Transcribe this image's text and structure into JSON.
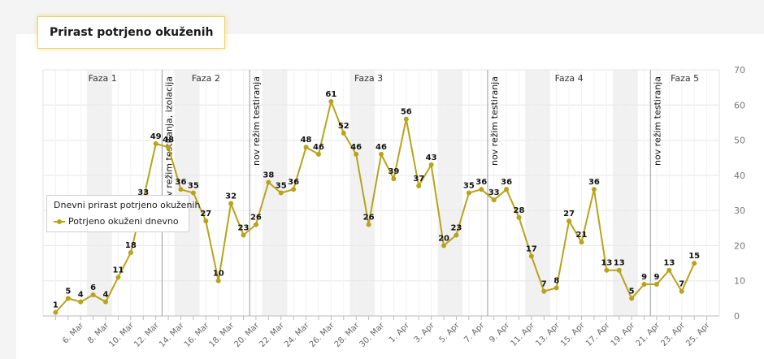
{
  "header": {
    "title": "Prirast potrjeno okuženih"
  },
  "legend": {
    "title": "Dnevni prirast potrjeno okuženih",
    "series_label": "Potrjeno okuženi dnevno"
  },
  "colors": {
    "line": "#b8a31a",
    "phase_band": "#f1f1f1",
    "grid": "#e6e6e6",
    "divider": "#9a9a9a"
  },
  "chart_data": {
    "type": "line",
    "title": "Prirast potrjeno okuženih",
    "xlabel": "",
    "ylabel": "",
    "ylim": [
      0,
      70
    ],
    "yticks": [
      0,
      10,
      20,
      30,
      40,
      50,
      60,
      70
    ],
    "x_start_day": 4,
    "x_tick_labels": [
      {
        "day": 6,
        "label": "6. Mar"
      },
      {
        "day": 8,
        "label": "8. Mar"
      },
      {
        "day": 10,
        "label": "10. Mar"
      },
      {
        "day": 12,
        "label": "12. Mar"
      },
      {
        "day": 14,
        "label": "14. Mar"
      },
      {
        "day": 16,
        "label": "16. Mar"
      },
      {
        "day": 18,
        "label": "18. Mar"
      },
      {
        "day": 20,
        "label": "20. Mar"
      },
      {
        "day": 22,
        "label": "22. Mar"
      },
      {
        "day": 24,
        "label": "24. Mar"
      },
      {
        "day": 26,
        "label": "26. Mar"
      },
      {
        "day": 28,
        "label": "28. Mar"
      },
      {
        "day": 30,
        "label": "30. Mar"
      },
      {
        "day": 32,
        "label": "1. Apr"
      },
      {
        "day": 34,
        "label": "3. Apr"
      },
      {
        "day": 36,
        "label": "5. Apr"
      },
      {
        "day": 38,
        "label": "7. Apr"
      },
      {
        "day": 40,
        "label": "9. Apr"
      },
      {
        "day": 42,
        "label": "11. Apr"
      },
      {
        "day": 44,
        "label": "13. Apr"
      },
      {
        "day": 46,
        "label": "15. Apr"
      },
      {
        "day": 48,
        "label": "17. Apr"
      },
      {
        "day": 50,
        "label": "19. Apr"
      },
      {
        "day": 52,
        "label": "21. Apr"
      },
      {
        "day": 54,
        "label": "23. Apr"
      },
      {
        "day": 56,
        "label": "25. Apr"
      }
    ],
    "series": [
      {
        "name": "Potrjeno okuženi dnevno",
        "start_day": 4,
        "values": [
          1,
          5,
          4,
          6,
          4,
          11,
          18,
          33,
          49,
          48,
          36,
          35,
          27,
          10,
          32,
          23,
          26,
          38,
          35,
          36,
          48,
          46,
          61,
          52,
          46,
          26,
          46,
          39,
          56,
          37,
          43,
          20,
          23,
          35,
          36,
          33,
          36,
          28,
          17,
          7,
          8,
          27,
          21,
          36,
          13,
          13,
          5,
          9,
          9,
          13,
          7,
          15
        ]
      }
    ],
    "phases": [
      {
        "label": "Faza 1",
        "from_day": 3.0,
        "to_day": 12.5
      },
      {
        "label": "Faza 2",
        "from_day": 12.5,
        "to_day": 19.5
      },
      {
        "label": "Faza 3",
        "from_day": 19.5,
        "to_day": 38.5
      },
      {
        "label": "Faza 4",
        "from_day": 38.5,
        "to_day": 51.5
      },
      {
        "label": "Faza 5",
        "from_day": 51.5,
        "to_day": 57.0
      }
    ],
    "dividers": [
      {
        "day": 12.5,
        "label": "nov režim testiranja, izolacija"
      },
      {
        "day": 19.5,
        "label": "nov režim testiranja"
      },
      {
        "day": 38.5,
        "label": "nov režim testiranja"
      },
      {
        "day": 51.5,
        "label": "nov režim testiranja"
      }
    ],
    "weekend_bands": [
      {
        "from_day": 6.5,
        "to_day": 8.5
      },
      {
        "from_day": 13.5,
        "to_day": 15.5
      },
      {
        "from_day": 20.5,
        "to_day": 22.5
      },
      {
        "from_day": 27.5,
        "to_day": 29.5
      },
      {
        "from_day": 34.5,
        "to_day": 36.5
      },
      {
        "from_day": 41.5,
        "to_day": 43.5
      },
      {
        "from_day": 48.5,
        "to_day": 50.5
      }
    ]
  }
}
